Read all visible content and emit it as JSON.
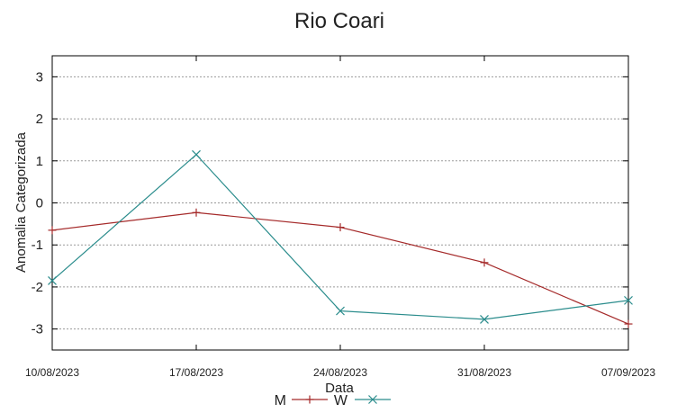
{
  "chart_data": {
    "type": "line",
    "title": "Rio Coari",
    "xlabel": "Data",
    "ylabel": "Anomalia Categorizada",
    "x": [
      "10/08/2023",
      "17/08/2023",
      "24/08/2023",
      "31/08/2023",
      "07/09/2023"
    ],
    "ylim": [
      -3.5,
      3.5
    ],
    "yticks": [
      -3,
      -2,
      -1,
      0,
      1,
      2,
      3
    ],
    "grid": true,
    "legend": "bottom",
    "series": [
      {
        "name": "M",
        "color": "#a52a2a",
        "marker": "plus",
        "values": [
          -0.65,
          -0.23,
          -0.58,
          -1.42,
          -2.88
        ]
      },
      {
        "name": "W",
        "color": "#2a8c8c",
        "marker": "cross",
        "values": [
          -1.85,
          1.15,
          -2.57,
          -2.77,
          -2.32
        ]
      }
    ]
  }
}
